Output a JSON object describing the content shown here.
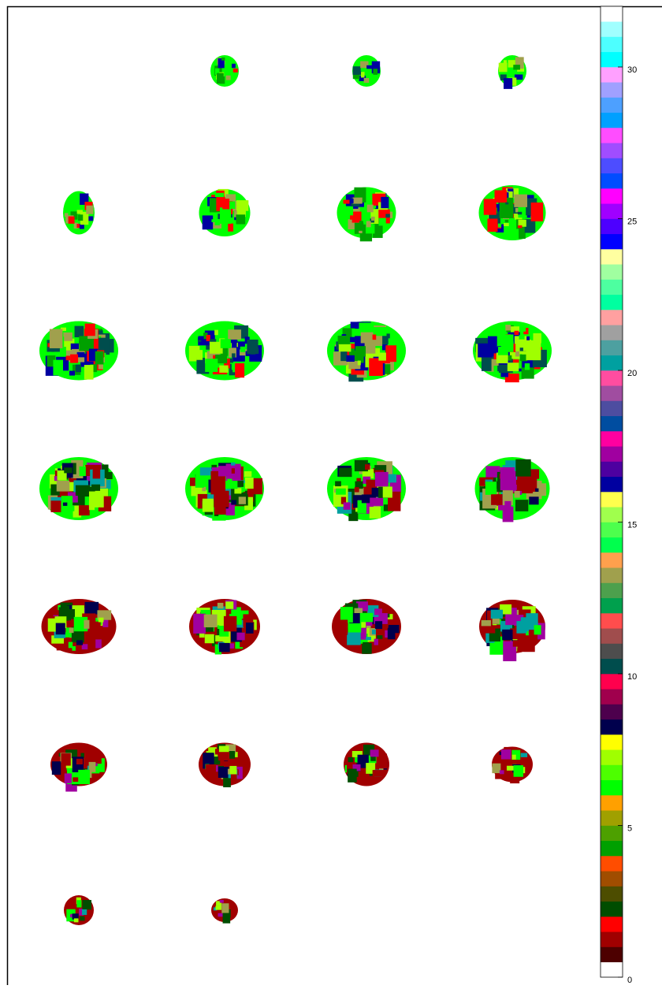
{
  "colorbar": {
    "range": [
      0,
      32
    ],
    "ticks": [
      0,
      5,
      10,
      15,
      20,
      25,
      30
    ],
    "colors": [
      "#ffffff",
      "#4d0000",
      "#a00000",
      "#ff0000",
      "#004d00",
      "#4d4d00",
      "#a04d00",
      "#ff4d00",
      "#00a000",
      "#4da000",
      "#a0a000",
      "#ffa000",
      "#00ff00",
      "#4dff00",
      "#a0ff00",
      "#ffff00",
      "#00004d",
      "#4d004d",
      "#a0004d",
      "#ff004d",
      "#004d4d",
      "#4d4d4d",
      "#a04d4d",
      "#ff4d4d",
      "#00a04d",
      "#4da04d",
      "#a0a04d",
      "#ffa04d",
      "#00ff4d",
      "#4dff4d",
      "#a0ff4d",
      "#ffff4d",
      "#0000a0",
      "#4d00a0",
      "#a000a0",
      "#ff00a0",
      "#004da0",
      "#4d4da0",
      "#a04da0",
      "#ff4da0",
      "#00a0a0",
      "#4da0a0",
      "#a0a0a0",
      "#ffa0a0",
      "#00ffa0",
      "#4dffa0",
      "#a0ffa0",
      "#ffffa0",
      "#0000ff",
      "#4d00ff",
      "#a000ff",
      "#ff00ff",
      "#004dff",
      "#4d4dff",
      "#a04dff",
      "#ff4dff",
      "#00a0ff",
      "#4da0ff",
      "#a0a0ff",
      "#ffa0ff",
      "#00ffff",
      "#4dffff",
      "#a0ffff",
      "#ffffff"
    ]
  }
}
